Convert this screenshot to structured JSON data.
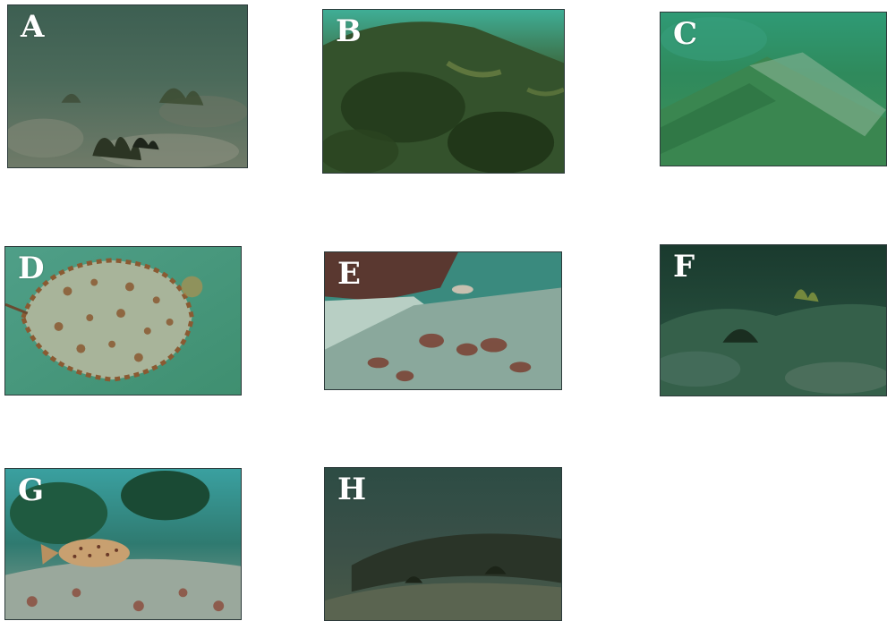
{
  "panels": [
    {
      "id": "a",
      "label": "A",
      "water": "#3f5f52",
      "floor": "#6e7a68",
      "accent": "#2f3a2c"
    },
    {
      "id": "b",
      "label": "B",
      "water": "#2f9f88",
      "floor": "#3f5a30",
      "accent": "#223818"
    },
    {
      "id": "c",
      "label": "C",
      "water": "#1f9a6f",
      "floor": "#3f8f5a",
      "accent": "#2a6a3e"
    },
    {
      "id": "d",
      "label": "D",
      "water": "#4fa08a",
      "floor": "#9aa890",
      "accent": "#8a5a32"
    },
    {
      "id": "e",
      "label": "E",
      "water": "#2f7a70",
      "floor": "#9fbdb0",
      "accent": "#6a4032"
    },
    {
      "id": "f",
      "label": "F",
      "water": "#1d4a3a",
      "floor": "#2d5a45",
      "accent": "#1a3024"
    },
    {
      "id": "g",
      "label": "G",
      "water": "#2f8f8a",
      "floor": "#8a9f90",
      "accent": "#7a4a3a"
    },
    {
      "id": "h",
      "label": "H",
      "water": "#2f4f45",
      "floor": "#4a5a48",
      "accent": "#2a3428"
    }
  ]
}
